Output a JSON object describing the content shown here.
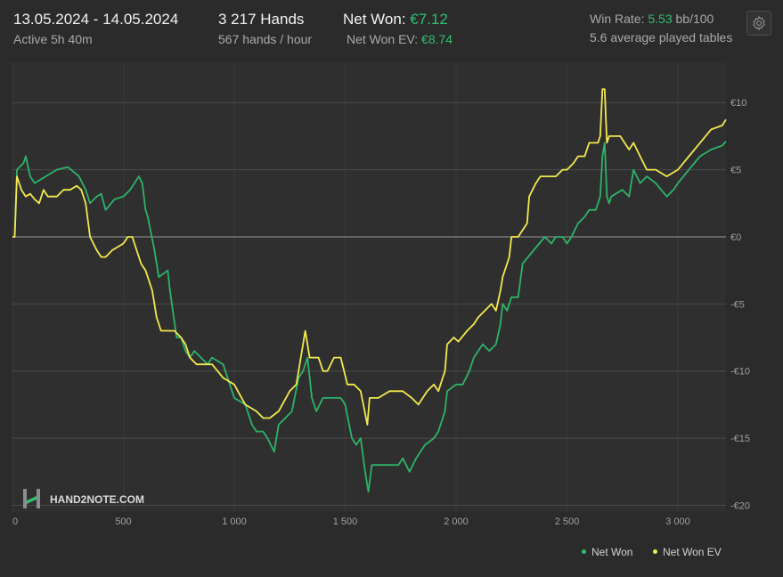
{
  "header": {
    "date_range": "13.05.2024 - 14.05.2024",
    "active_time": "Active 5h 40m",
    "hands": "3 217 Hands",
    "hands_per_hour": "567 hands / hour",
    "net_won_label": "Net Won:",
    "net_won_value": "€7.12",
    "net_won_ev_label": "Net Won  EV:",
    "net_won_ev_value": "€8.74",
    "win_rate_label": "Win Rate:",
    "win_rate_value": "5.53",
    "win_rate_unit": "bb/100",
    "avg_tables": "5.6 average played tables"
  },
  "colors": {
    "net_won": "#2db36a",
    "net_won_ev": "#f2e94e",
    "background": "#2b2b2b",
    "grid": "#454545"
  },
  "watermark": {
    "text": "HAND2NOTE.COM"
  },
  "icons": {
    "settings": "gear-icon",
    "logo": "hand2note-logo-icon"
  },
  "chart_data": {
    "type": "line",
    "xlabel": "",
    "ylabel": "",
    "xlim": [
      0,
      3217
    ],
    "ylim": [
      -20.5,
      13
    ],
    "x_ticks": [
      0,
      500,
      1000,
      1500,
      2000,
      2500,
      3000
    ],
    "x_tick_labels": [
      "0",
      "500",
      "1 000",
      "1 500",
      "2 000",
      "2 500",
      "3 000"
    ],
    "y_ticks": [
      10,
      5,
      0,
      -5,
      -10,
      -15,
      -20
    ],
    "y_tick_labels": [
      "€10",
      "€5",
      "€0",
      "-€5",
      "-€10",
      "-€15",
      "-€20"
    ],
    "grid": true,
    "legend_position": "bottom-right",
    "series": [
      {
        "name": "Net Won",
        "color_key": "net_won",
        "points": [
          [
            0,
            0
          ],
          [
            10,
            0
          ],
          [
            20,
            5
          ],
          [
            50,
            5.5
          ],
          [
            60,
            6
          ],
          [
            80,
            4.5
          ],
          [
            100,
            4
          ],
          [
            150,
            4.5
          ],
          [
            200,
            5
          ],
          [
            250,
            5.2
          ],
          [
            300,
            4.5
          ],
          [
            330,
            3.5
          ],
          [
            350,
            2.5
          ],
          [
            380,
            3
          ],
          [
            400,
            3.2
          ],
          [
            420,
            2
          ],
          [
            460,
            2.8
          ],
          [
            500,
            3
          ],
          [
            530,
            3.5
          ],
          [
            550,
            4
          ],
          [
            570,
            4.5
          ],
          [
            585,
            4
          ],
          [
            600,
            2
          ],
          [
            610,
            1.5
          ],
          [
            640,
            -1
          ],
          [
            660,
            -3
          ],
          [
            700,
            -2.5
          ],
          [
            710,
            -4
          ],
          [
            740,
            -7.5
          ],
          [
            760,
            -7.5
          ],
          [
            780,
            -8.5
          ],
          [
            800,
            -9
          ],
          [
            820,
            -8.5
          ],
          [
            850,
            -9
          ],
          [
            880,
            -9.5
          ],
          [
            900,
            -9
          ],
          [
            950,
            -9.5
          ],
          [
            1000,
            -12
          ],
          [
            1050,
            -12.5
          ],
          [
            1080,
            -14
          ],
          [
            1100,
            -14.5
          ],
          [
            1130,
            -14.5
          ],
          [
            1150,
            -15
          ],
          [
            1180,
            -16
          ],
          [
            1200,
            -14
          ],
          [
            1230,
            -13.5
          ],
          [
            1260,
            -13
          ],
          [
            1290,
            -10.5
          ],
          [
            1310,
            -10
          ],
          [
            1330,
            -9
          ],
          [
            1350,
            -12
          ],
          [
            1370,
            -13
          ],
          [
            1400,
            -12
          ],
          [
            1450,
            -12
          ],
          [
            1480,
            -12
          ],
          [
            1500,
            -12.5
          ],
          [
            1530,
            -15
          ],
          [
            1550,
            -15.5
          ],
          [
            1570,
            -15
          ],
          [
            1590,
            -17.5
          ],
          [
            1605,
            -19
          ],
          [
            1620,
            -17
          ],
          [
            1650,
            -17
          ],
          [
            1700,
            -17
          ],
          [
            1740,
            -17
          ],
          [
            1760,
            -16.5
          ],
          [
            1790,
            -17.5
          ],
          [
            1820,
            -16.5
          ],
          [
            1860,
            -15.5
          ],
          [
            1900,
            -15
          ],
          [
            1920,
            -14.5
          ],
          [
            1950,
            -13
          ],
          [
            1960,
            -11.5
          ],
          [
            2000,
            -11
          ],
          [
            2030,
            -11
          ],
          [
            2060,
            -10
          ],
          [
            2080,
            -9
          ],
          [
            2100,
            -8.5
          ],
          [
            2120,
            -8
          ],
          [
            2150,
            -8.5
          ],
          [
            2180,
            -8
          ],
          [
            2200,
            -6.5
          ],
          [
            2210,
            -5
          ],
          [
            2230,
            -5.5
          ],
          [
            2250,
            -4.5
          ],
          [
            2280,
            -4.5
          ],
          [
            2300,
            -2
          ],
          [
            2350,
            -1
          ],
          [
            2400,
            0
          ],
          [
            2430,
            -0.5
          ],
          [
            2450,
            0
          ],
          [
            2480,
            0
          ],
          [
            2500,
            -0.5
          ],
          [
            2520,
            0
          ],
          [
            2550,
            1
          ],
          [
            2580,
            1.5
          ],
          [
            2600,
            2
          ],
          [
            2630,
            2
          ],
          [
            2650,
            3
          ],
          [
            2660,
            6
          ],
          [
            2670,
            7
          ],
          [
            2680,
            3
          ],
          [
            2690,
            2.5
          ],
          [
            2700,
            3
          ],
          [
            2750,
            3.5
          ],
          [
            2780,
            3
          ],
          [
            2800,
            5
          ],
          [
            2830,
            4
          ],
          [
            2860,
            4.5
          ],
          [
            2900,
            4
          ],
          [
            2950,
            3
          ],
          [
            2980,
            3.5
          ],
          [
            3000,
            4
          ],
          [
            3050,
            5
          ],
          [
            3100,
            6
          ],
          [
            3150,
            6.5
          ],
          [
            3200,
            6.8
          ],
          [
            3217,
            7.12
          ]
        ]
      },
      {
        "name": "Net Won  EV",
        "color_key": "net_won_ev",
        "points": [
          [
            0,
            0
          ],
          [
            10,
            0
          ],
          [
            20,
            4.5
          ],
          [
            40,
            3.5
          ],
          [
            60,
            3
          ],
          [
            80,
            3.2
          ],
          [
            100,
            2.8
          ],
          [
            120,
            2.5
          ],
          [
            140,
            3.5
          ],
          [
            160,
            3
          ],
          [
            200,
            3
          ],
          [
            230,
            3.5
          ],
          [
            260,
            3.5
          ],
          [
            290,
            3.8
          ],
          [
            310,
            3.5
          ],
          [
            330,
            2.5
          ],
          [
            350,
            0
          ],
          [
            380,
            -1
          ],
          [
            400,
            -1.5
          ],
          [
            420,
            -1.5
          ],
          [
            450,
            -1
          ],
          [
            500,
            -0.5
          ],
          [
            520,
            0
          ],
          [
            540,
            0
          ],
          [
            560,
            -1
          ],
          [
            580,
            -2
          ],
          [
            600,
            -2.5
          ],
          [
            620,
            -3.5
          ],
          [
            630,
            -4
          ],
          [
            650,
            -6
          ],
          [
            670,
            -7
          ],
          [
            700,
            -7
          ],
          [
            730,
            -7
          ],
          [
            760,
            -7.5
          ],
          [
            780,
            -8
          ],
          [
            800,
            -9
          ],
          [
            830,
            -9.5
          ],
          [
            860,
            -9.5
          ],
          [
            900,
            -9.5
          ],
          [
            950,
            -10.5
          ],
          [
            1000,
            -11
          ],
          [
            1050,
            -12.5
          ],
          [
            1100,
            -13
          ],
          [
            1130,
            -13.5
          ],
          [
            1160,
            -13.5
          ],
          [
            1200,
            -13
          ],
          [
            1250,
            -11.5
          ],
          [
            1280,
            -11
          ],
          [
            1310,
            -8
          ],
          [
            1320,
            -7
          ],
          [
            1340,
            -9
          ],
          [
            1360,
            -9
          ],
          [
            1380,
            -9
          ],
          [
            1400,
            -10
          ],
          [
            1420,
            -10
          ],
          [
            1450,
            -9
          ],
          [
            1480,
            -9
          ],
          [
            1510,
            -11
          ],
          [
            1540,
            -11
          ],
          [
            1570,
            -11.5
          ],
          [
            1600,
            -14
          ],
          [
            1610,
            -12
          ],
          [
            1650,
            -12
          ],
          [
            1700,
            -11.5
          ],
          [
            1740,
            -11.5
          ],
          [
            1760,
            -11.5
          ],
          [
            1800,
            -12
          ],
          [
            1830,
            -12.5
          ],
          [
            1850,
            -12
          ],
          [
            1870,
            -11.5
          ],
          [
            1900,
            -11
          ],
          [
            1920,
            -11.5
          ],
          [
            1950,
            -10
          ],
          [
            1960,
            -8
          ],
          [
            1990,
            -7.5
          ],
          [
            2010,
            -7.8
          ],
          [
            2050,
            -7
          ],
          [
            2080,
            -6.5
          ],
          [
            2100,
            -6
          ],
          [
            2130,
            -5.5
          ],
          [
            2160,
            -5
          ],
          [
            2180,
            -5.5
          ],
          [
            2200,
            -4
          ],
          [
            2210,
            -3
          ],
          [
            2240,
            -1.5
          ],
          [
            2250,
            0
          ],
          [
            2280,
            0
          ],
          [
            2300,
            0.5
          ],
          [
            2320,
            1
          ],
          [
            2330,
            3
          ],
          [
            2360,
            4
          ],
          [
            2380,
            4.5
          ],
          [
            2400,
            4.5
          ],
          [
            2430,
            4.5
          ],
          [
            2450,
            4.5
          ],
          [
            2480,
            5
          ],
          [
            2500,
            5
          ],
          [
            2530,
            5.5
          ],
          [
            2550,
            6
          ],
          [
            2580,
            6
          ],
          [
            2600,
            7
          ],
          [
            2620,
            7
          ],
          [
            2640,
            7
          ],
          [
            2650,
            7.5
          ],
          [
            2660,
            11
          ],
          [
            2670,
            11
          ],
          [
            2680,
            7
          ],
          [
            2690,
            7.5
          ],
          [
            2720,
            7.5
          ],
          [
            2740,
            7.5
          ],
          [
            2760,
            7
          ],
          [
            2780,
            6.5
          ],
          [
            2800,
            7
          ],
          [
            2830,
            6
          ],
          [
            2860,
            5
          ],
          [
            2900,
            5
          ],
          [
            2950,
            4.5
          ],
          [
            3000,
            5
          ],
          [
            3050,
            6
          ],
          [
            3100,
            7
          ],
          [
            3150,
            8
          ],
          [
            3200,
            8.3
          ],
          [
            3217,
            8.74
          ]
        ]
      }
    ]
  }
}
